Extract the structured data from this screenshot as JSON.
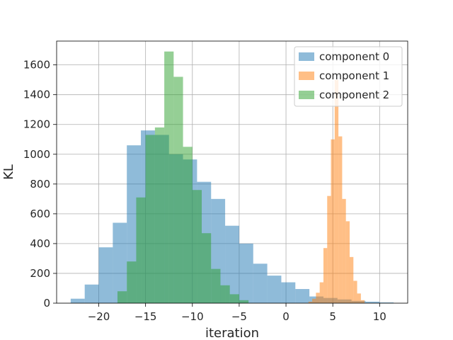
{
  "chart_data": {
    "type": "bar",
    "subtype": "histogram",
    "xlabel": "iteration",
    "ylabel": "KL",
    "xlim": [
      -24.5,
      13
    ],
    "ylim": [
      0,
      1760
    ],
    "xticks": [
      -20,
      -15,
      -10,
      -5,
      0,
      5,
      10
    ],
    "xtick_labels": [
      "−20",
      "−15",
      "−10",
      "−5",
      "0",
      "5",
      "10"
    ],
    "yticks": [
      0,
      200,
      400,
      600,
      800,
      1000,
      1200,
      1400,
      1600
    ],
    "ytick_labels": [
      "0",
      "200",
      "400",
      "600",
      "800",
      "1000",
      "1200",
      "1400",
      "1600"
    ],
    "grid": true,
    "legend_position": "top-right",
    "series": [
      {
        "name": "component 0",
        "color": "#1f77b4",
        "alpha": 0.5,
        "bin_edges": [
          -23.0,
          -21.5,
          -20.0,
          -18.5,
          -17.0,
          -15.5,
          -14.0,
          -12.5,
          -11.0,
          -9.5,
          -8.0,
          -6.5,
          -5.0,
          -3.5,
          -2.0,
          -0.5,
          1.0,
          2.5,
          4.0,
          5.5,
          7.0,
          8.5,
          10.0,
          11.5
        ],
        "counts": [
          30,
          125,
          375,
          540,
          1060,
          1160,
          1130,
          1000,
          965,
          815,
          700,
          520,
          400,
          265,
          185,
          140,
          95,
          45,
          35,
          25,
          15,
          10,
          5
        ]
      },
      {
        "name": "component 1",
        "color": "#ff7f0e",
        "alpha": 0.5,
        "bin_edges": [
          2.4,
          2.8,
          3.2,
          3.6,
          4.0,
          4.4,
          4.8,
          5.2,
          5.6,
          6.0,
          6.4,
          6.8,
          7.2,
          7.6,
          8.0,
          8.4
        ],
        "counts": [
          10,
          30,
          70,
          140,
          370,
          720,
          1100,
          1500,
          1120,
          700,
          550,
          310,
          150,
          65,
          20
        ]
      },
      {
        "name": "component 2",
        "color": "#2ca02c",
        "alpha": 0.5,
        "bin_edges": [
          -18.0,
          -17.0,
          -16.0,
          -15.0,
          -14.0,
          -13.0,
          -12.0,
          -11.0,
          -10.0,
          -9.0,
          -8.0,
          -7.0,
          -6.0,
          -5.0,
          -4.0
        ],
        "counts": [
          80,
          280,
          710,
          1130,
          1180,
          1690,
          1520,
          1050,
          760,
          470,
          230,
          120,
          60,
          20
        ]
      }
    ]
  }
}
